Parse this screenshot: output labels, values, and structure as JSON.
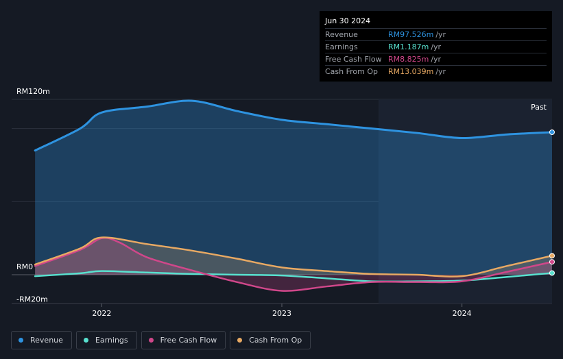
{
  "colors": {
    "revenue": "#2e93e0",
    "earnings": "#58e1cf",
    "fcf": "#d0478a",
    "cfo": "#e8a963",
    "background": "#151a24"
  },
  "tooltip": {
    "date": "Jun 30 2024",
    "rows": [
      {
        "label": "Revenue",
        "value": "RM97.526m",
        "unit": "/yr",
        "color": "#2e93e0"
      },
      {
        "label": "Earnings",
        "value": "RM1.187m",
        "unit": "/yr",
        "color": "#58e1cf"
      },
      {
        "label": "Free Cash Flow",
        "value": "RM8.825m",
        "unit": "/yr",
        "color": "#d0478a"
      },
      {
        "label": "Cash From Op",
        "value": "RM13.039m",
        "unit": "/yr",
        "color": "#e8a963"
      }
    ]
  },
  "past_label": "Past",
  "legend": [
    {
      "label": "Revenue",
      "color": "#2e93e0"
    },
    {
      "label": "Earnings",
      "color": "#58e1cf"
    },
    {
      "label": "Free Cash Flow",
      "color": "#d0478a"
    },
    {
      "label": "Cash From Op",
      "color": "#e8a963"
    }
  ],
  "chart_data": {
    "type": "area",
    "y_tick_labels": [
      "RM120m",
      "RM0",
      "-RM20m"
    ],
    "x_tick_labels": [
      "2022",
      "2023",
      "2024"
    ],
    "ylim": [
      -20,
      120
    ],
    "xlim": [
      2021.5,
      2024.5
    ],
    "grid": true,
    "series": [
      {
        "name": "Revenue",
        "points": [
          [
            2021.63,
            85
          ],
          [
            2021.88,
            100
          ],
          [
            2022.0,
            111
          ],
          [
            2022.25,
            115
          ],
          [
            2022.5,
            119
          ],
          [
            2022.75,
            112
          ],
          [
            2023.0,
            106
          ],
          [
            2023.25,
            103
          ],
          [
            2023.5,
            100
          ],
          [
            2023.75,
            97
          ],
          [
            2024.0,
            93.5
          ],
          [
            2024.25,
            96
          ],
          [
            2024.5,
            97.5
          ]
        ]
      },
      {
        "name": "Earnings",
        "points": [
          [
            2021.63,
            -1
          ],
          [
            2021.88,
            1
          ],
          [
            2022.0,
            2.5
          ],
          [
            2022.25,
            1.5
          ],
          [
            2022.5,
            0.5
          ],
          [
            2022.75,
            0
          ],
          [
            2023.0,
            -0.5
          ],
          [
            2023.25,
            -2.5
          ],
          [
            2023.5,
            -4.5
          ],
          [
            2023.75,
            -4.5
          ],
          [
            2024.0,
            -4
          ],
          [
            2024.25,
            -1.5
          ],
          [
            2024.5,
            1.2
          ]
        ]
      },
      {
        "name": "Free Cash Flow",
        "points": [
          [
            2021.63,
            6
          ],
          [
            2021.88,
            17
          ],
          [
            2022.0,
            25
          ],
          [
            2022.1,
            22
          ],
          [
            2022.25,
            12
          ],
          [
            2022.5,
            3
          ],
          [
            2022.75,
            -5
          ],
          [
            2023.0,
            -11
          ],
          [
            2023.25,
            -8
          ],
          [
            2023.5,
            -5
          ],
          [
            2023.75,
            -5
          ],
          [
            2024.0,
            -4.5
          ],
          [
            2024.25,
            2
          ],
          [
            2024.5,
            8.8
          ]
        ]
      },
      {
        "name": "Cash From Op",
        "points": [
          [
            2021.63,
            7
          ],
          [
            2021.88,
            18
          ],
          [
            2022.0,
            25.5
          ],
          [
            2022.25,
            21
          ],
          [
            2022.5,
            16.5
          ],
          [
            2022.75,
            11
          ],
          [
            2023.0,
            5
          ],
          [
            2023.25,
            2.5
          ],
          [
            2023.5,
            0.5
          ],
          [
            2023.75,
            0
          ],
          [
            2024.0,
            -1
          ],
          [
            2024.25,
            6
          ],
          [
            2024.5,
            13
          ]
        ]
      }
    ]
  }
}
